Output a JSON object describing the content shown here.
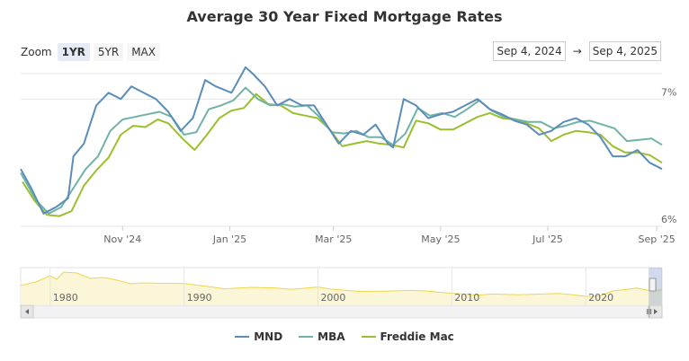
{
  "title": "Average 30 Year Fixed Mortgage Rates",
  "zoom": {
    "label": "Zoom",
    "buttons": [
      {
        "label": "1YR",
        "active": true
      },
      {
        "label": "5YR",
        "active": false
      },
      {
        "label": "MAX",
        "active": false
      }
    ]
  },
  "range": {
    "from": "Sep 4, 2024",
    "arrow": "→",
    "to": "Sep 4, 2025"
  },
  "colors": {
    "MND": "#5b8db8",
    "MBA": "#6fb3a8",
    "Freddie Mac": "#9bbf2e",
    "navigator": "#f0d54a",
    "grid": "#e6e6e6"
  },
  "chart_data": {
    "type": "line",
    "x_axis": {
      "range": [
        "2024-09-04",
        "2025-09-04"
      ],
      "ticks": [
        "Nov '24",
        "Jan '25",
        "Mar '25",
        "May '25",
        "Jul '25",
        "Sep '25"
      ]
    },
    "y_axis": {
      "range": [
        6.0,
        7.2
      ],
      "ticks": [
        "7%",
        "6%"
      ],
      "tick_values": [
        7,
        6
      ],
      "grid": true
    },
    "series": [
      {
        "name": "MND",
        "x": [
          "2024-09-04",
          "2024-09-10",
          "2024-09-17",
          "2024-09-24",
          "2024-10-01",
          "2024-10-04",
          "2024-10-10",
          "2024-10-17",
          "2024-10-24",
          "2024-10-31",
          "2024-11-06",
          "2024-11-13",
          "2024-11-20",
          "2024-11-27",
          "2024-12-04",
          "2024-12-11",
          "2024-12-18",
          "2024-12-24",
          "2025-01-02",
          "2025-01-10",
          "2025-01-14",
          "2025-01-21",
          "2025-01-28",
          "2025-02-04",
          "2025-02-11",
          "2025-02-18",
          "2025-02-25",
          "2025-03-04",
          "2025-03-11",
          "2025-03-18",
          "2025-03-25",
          "2025-04-01",
          "2025-04-04",
          "2025-04-10",
          "2025-04-17",
          "2025-04-24",
          "2025-05-01",
          "2025-05-08",
          "2025-05-15",
          "2025-05-22",
          "2025-05-29",
          "2025-06-05",
          "2025-06-12",
          "2025-06-19",
          "2025-06-26",
          "2025-07-03",
          "2025-07-10",
          "2025-07-17",
          "2025-07-24",
          "2025-07-31",
          "2025-08-07",
          "2025-08-14",
          "2025-08-21",
          "2025-08-28",
          "2025-09-04"
        ],
        "values": [
          6.45,
          6.3,
          6.1,
          6.15,
          6.22,
          6.55,
          6.65,
          6.95,
          7.05,
          7.0,
          7.1,
          7.05,
          7.0,
          6.9,
          6.75,
          6.85,
          7.15,
          7.1,
          7.05,
          7.25,
          7.2,
          7.1,
          6.95,
          7.0,
          6.95,
          6.95,
          6.8,
          6.65,
          6.75,
          6.72,
          6.8,
          6.65,
          6.62,
          7.0,
          6.95,
          6.85,
          6.88,
          6.9,
          6.95,
          7.0,
          6.92,
          6.88,
          6.83,
          6.8,
          6.72,
          6.75,
          6.82,
          6.85,
          6.8,
          6.7,
          6.55,
          6.55,
          6.6,
          6.5,
          6.45
        ]
      },
      {
        "name": "MBA",
        "x": [
          "2024-09-04",
          "2024-09-13",
          "2024-09-20",
          "2024-09-27",
          "2024-10-04",
          "2024-10-11",
          "2024-10-18",
          "2024-10-25",
          "2024-11-01",
          "2024-11-08",
          "2024-11-15",
          "2024-11-22",
          "2024-11-29",
          "2024-12-06",
          "2024-12-13",
          "2024-12-20",
          "2024-12-27",
          "2025-01-03",
          "2025-01-10",
          "2025-01-17",
          "2025-01-24",
          "2025-01-31",
          "2025-02-07",
          "2025-02-14",
          "2025-02-21",
          "2025-02-28",
          "2025-03-07",
          "2025-03-14",
          "2025-03-21",
          "2025-03-28",
          "2025-04-04",
          "2025-04-11",
          "2025-04-18",
          "2025-04-25",
          "2025-05-02",
          "2025-05-09",
          "2025-05-16",
          "2025-05-23",
          "2025-05-30",
          "2025-06-06",
          "2025-06-13",
          "2025-06-20",
          "2025-06-27",
          "2025-07-04",
          "2025-07-11",
          "2025-07-18",
          "2025-07-25",
          "2025-08-01",
          "2025-08-08",
          "2025-08-15",
          "2025-08-22",
          "2025-08-29",
          "2025-09-04"
        ],
        "values": [
          6.42,
          6.2,
          6.1,
          6.15,
          6.3,
          6.45,
          6.55,
          6.75,
          6.84,
          6.86,
          6.88,
          6.9,
          6.86,
          6.72,
          6.74,
          6.92,
          6.95,
          6.99,
          7.09,
          7.0,
          6.95,
          6.96,
          6.94,
          6.95,
          6.86,
          6.74,
          6.73,
          6.75,
          6.7,
          6.7,
          6.64,
          6.73,
          6.93,
          6.87,
          6.89,
          6.86,
          6.92,
          6.99,
          6.91,
          6.86,
          6.84,
          6.82,
          6.82,
          6.77,
          6.79,
          6.82,
          6.83,
          6.8,
          6.77,
          6.67,
          6.68,
          6.69,
          6.64
        ]
      },
      {
        "name": "Freddie Mac",
        "x": [
          "2024-09-05",
          "2024-09-12",
          "2024-09-19",
          "2024-09-26",
          "2024-10-03",
          "2024-10-10",
          "2024-10-17",
          "2024-10-24",
          "2024-10-31",
          "2024-11-07",
          "2024-11-14",
          "2024-11-21",
          "2024-11-27",
          "2024-12-05",
          "2024-12-12",
          "2024-12-19",
          "2024-12-26",
          "2025-01-02",
          "2025-01-09",
          "2025-01-16",
          "2025-01-23",
          "2025-01-30",
          "2025-02-06",
          "2025-02-13",
          "2025-02-20",
          "2025-02-27",
          "2025-03-06",
          "2025-03-13",
          "2025-03-20",
          "2025-03-27",
          "2025-04-03",
          "2025-04-10",
          "2025-04-17",
          "2025-04-24",
          "2025-05-01",
          "2025-05-08",
          "2025-05-15",
          "2025-05-22",
          "2025-05-29",
          "2025-06-05",
          "2025-06-12",
          "2025-06-19",
          "2025-06-26",
          "2025-07-03",
          "2025-07-10",
          "2025-07-17",
          "2025-07-24",
          "2025-07-31",
          "2025-08-07",
          "2025-08-14",
          "2025-08-21",
          "2025-08-28",
          "2025-09-04"
        ],
        "values": [
          6.35,
          6.2,
          6.09,
          6.08,
          6.12,
          6.32,
          6.44,
          6.54,
          6.72,
          6.79,
          6.78,
          6.84,
          6.81,
          6.69,
          6.6,
          6.72,
          6.85,
          6.91,
          6.93,
          7.04,
          6.96,
          6.95,
          6.89,
          6.87,
          6.85,
          6.76,
          6.63,
          6.65,
          6.67,
          6.65,
          6.64,
          6.62,
          6.83,
          6.81,
          6.76,
          6.76,
          6.81,
          6.86,
          6.89,
          6.85,
          6.84,
          6.81,
          6.77,
          6.67,
          6.72,
          6.75,
          6.74,
          6.72,
          6.63,
          6.58,
          6.58,
          6.56,
          6.5
        ]
      }
    ],
    "legend": {
      "position": "bottom-center",
      "entries": [
        "MND",
        "MBA",
        "Freddie Mac"
      ]
    },
    "navigator": {
      "x_ticks": [
        "1980",
        "1990",
        "2000",
        "2010",
        "2020"
      ],
      "tick_years": [
        1980,
        1990,
        2000,
        2010,
        2020
      ],
      "year_range": [
        1977.8,
        2025.7
      ],
      "series_values": {
        "years": [
          1977.8,
          1979,
          1980,
          1980.5,
          1981,
          1982,
          1983,
          1984,
          1985,
          1986,
          1987,
          1988,
          1990,
          1992,
          1993,
          1995,
          1997,
          1998,
          2000,
          2001,
          2003,
          2005,
          2007,
          2008,
          2010,
          2012,
          2013,
          2015,
          2018,
          2019,
          2020,
          2021,
          2022,
          2023,
          2023.8,
          2024.7,
          2025.7
        ],
        "values": [
          9.0,
          11.2,
          14.5,
          12.5,
          16.5,
          16.0,
          13.0,
          13.5,
          12.0,
          10.0,
          10.5,
          10.3,
          10.1,
          8.3,
          7.2,
          8.0,
          7.6,
          6.9,
          8.2,
          7.0,
          5.8,
          5.9,
          6.3,
          6.0,
          4.7,
          3.7,
          4.3,
          3.9,
          4.6,
          3.9,
          3.0,
          3.1,
          6.0,
          6.8,
          7.6,
          6.3,
          6.5
        ]
      }
    }
  }
}
